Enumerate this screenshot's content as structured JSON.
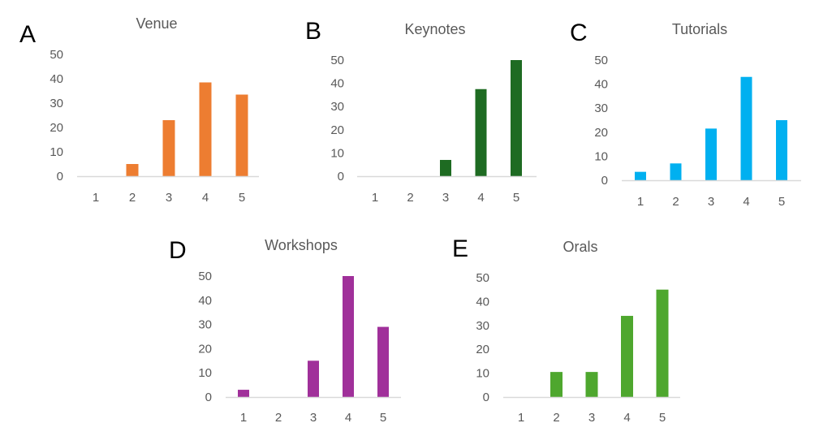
{
  "figure": {
    "background": "#ffffff"
  },
  "chart_data": [
    {
      "type": "bar",
      "panel_letter": "A",
      "title": "Venue",
      "categories": [
        "1",
        "2",
        "3",
        "4",
        "5"
      ],
      "values": [
        0,
        5,
        23,
        38.5,
        33.5
      ],
      "ylim": [
        0,
        50
      ],
      "yticks": [
        "0",
        "10",
        "20",
        "30",
        "40",
        "50"
      ],
      "color": "#ed7d31",
      "grid": false,
      "legend": "none"
    },
    {
      "type": "bar",
      "panel_letter": "B",
      "title": "Keynotes",
      "categories": [
        "1",
        "2",
        "3",
        "4",
        "5"
      ],
      "values": [
        0,
        0,
        7,
        37.5,
        50
      ],
      "ylim": [
        0,
        50
      ],
      "yticks": [
        "0",
        "10",
        "20",
        "30",
        "40",
        "50"
      ],
      "color": "#1e6b22",
      "grid": false,
      "legend": "none"
    },
    {
      "type": "bar",
      "panel_letter": "C",
      "title": "Tutorials",
      "categories": [
        "1",
        "2",
        "3",
        "4",
        "5"
      ],
      "values": [
        3.5,
        7,
        21.5,
        43,
        25
      ],
      "ylim": [
        0,
        50
      ],
      "yticks": [
        "0",
        "10",
        "20",
        "30",
        "40",
        "50"
      ],
      "color": "#00b0f0",
      "grid": false,
      "legend": "none"
    },
    {
      "type": "bar",
      "panel_letter": "D",
      "title": "Workshops",
      "categories": [
        "1",
        "2",
        "3",
        "4",
        "5"
      ],
      "values": [
        3,
        0,
        15,
        50,
        29
      ],
      "ylim": [
        0,
        50
      ],
      "yticks": [
        "0",
        "10",
        "20",
        "30",
        "40",
        "50"
      ],
      "color": "#a0309a",
      "grid": false,
      "legend": "none"
    },
    {
      "type": "bar",
      "panel_letter": "E",
      "title": "Orals",
      "categories": [
        "1",
        "2",
        "3",
        "4",
        "5"
      ],
      "values": [
        0,
        10.5,
        10.5,
        34,
        45
      ],
      "ylim": [
        0,
        50
      ],
      "yticks": [
        "0",
        "10",
        "20",
        "30",
        "40",
        "50"
      ],
      "color": "#4ea72e",
      "grid": false,
      "legend": "none"
    }
  ]
}
